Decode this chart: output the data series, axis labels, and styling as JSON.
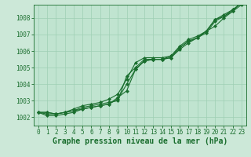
{
  "title": "Graphe pression niveau de la mer (hPa)",
  "background_color": "#cce8d8",
  "plot_bg_color": "#c0e4d0",
  "grid_color": "#9ecfb4",
  "line_color": "#1a6e2e",
  "xlim": [
    -0.5,
    23.5
  ],
  "ylim": [
    1001.5,
    1008.8
  ],
  "xticks": [
    0,
    1,
    2,
    3,
    4,
    5,
    6,
    7,
    8,
    9,
    10,
    11,
    12,
    13,
    14,
    15,
    16,
    17,
    18,
    19,
    20,
    21,
    22,
    23
  ],
  "yticks": [
    1002,
    1003,
    1004,
    1005,
    1006,
    1007,
    1008
  ],
  "series": [
    [
      1002.3,
      1002.3,
      1002.2,
      1002.3,
      1002.4,
      1002.5,
      1002.6,
      1002.7,
      1002.8,
      1003.1,
      1004.0,
      1004.9,
      1005.4,
      1005.5,
      1005.5,
      1005.6,
      1006.2,
      1006.6,
      1006.8,
      1007.2,
      1007.9,
      1008.1,
      1008.5,
      1008.9
    ],
    [
      1002.3,
      1002.2,
      1002.2,
      1002.3,
      1002.4,
      1002.6,
      1002.7,
      1002.8,
      1002.9,
      1003.0,
      1004.5,
      1005.0,
      1005.5,
      1005.5,
      1005.5,
      1005.7,
      1006.3,
      1006.7,
      1006.9,
      1007.2,
      1007.5,
      1008.0,
      1008.4,
      1008.8
    ],
    [
      1002.3,
      1002.1,
      1002.1,
      1002.2,
      1002.3,
      1002.5,
      1002.6,
      1002.7,
      1002.8,
      1003.2,
      1003.6,
      1004.9,
      1005.4,
      1005.5,
      1005.5,
      1005.6,
      1006.1,
      1006.5,
      1006.8,
      1007.1,
      1007.8,
      1008.1,
      1008.4,
      1009.0
    ],
    [
      1002.3,
      1002.3,
      1002.2,
      1002.3,
      1002.5,
      1002.7,
      1002.8,
      1002.9,
      1003.1,
      1003.4,
      1004.3,
      1005.3,
      1005.6,
      1005.6,
      1005.6,
      1005.7,
      1006.2,
      1006.6,
      1006.8,
      1007.2,
      1007.9,
      1008.2,
      1008.5,
      1008.9
    ]
  ],
  "marker": "D",
  "markersize": 2.0,
  "linewidth": 0.8,
  "title_fontsize": 7,
  "tick_fontsize": 5.5
}
